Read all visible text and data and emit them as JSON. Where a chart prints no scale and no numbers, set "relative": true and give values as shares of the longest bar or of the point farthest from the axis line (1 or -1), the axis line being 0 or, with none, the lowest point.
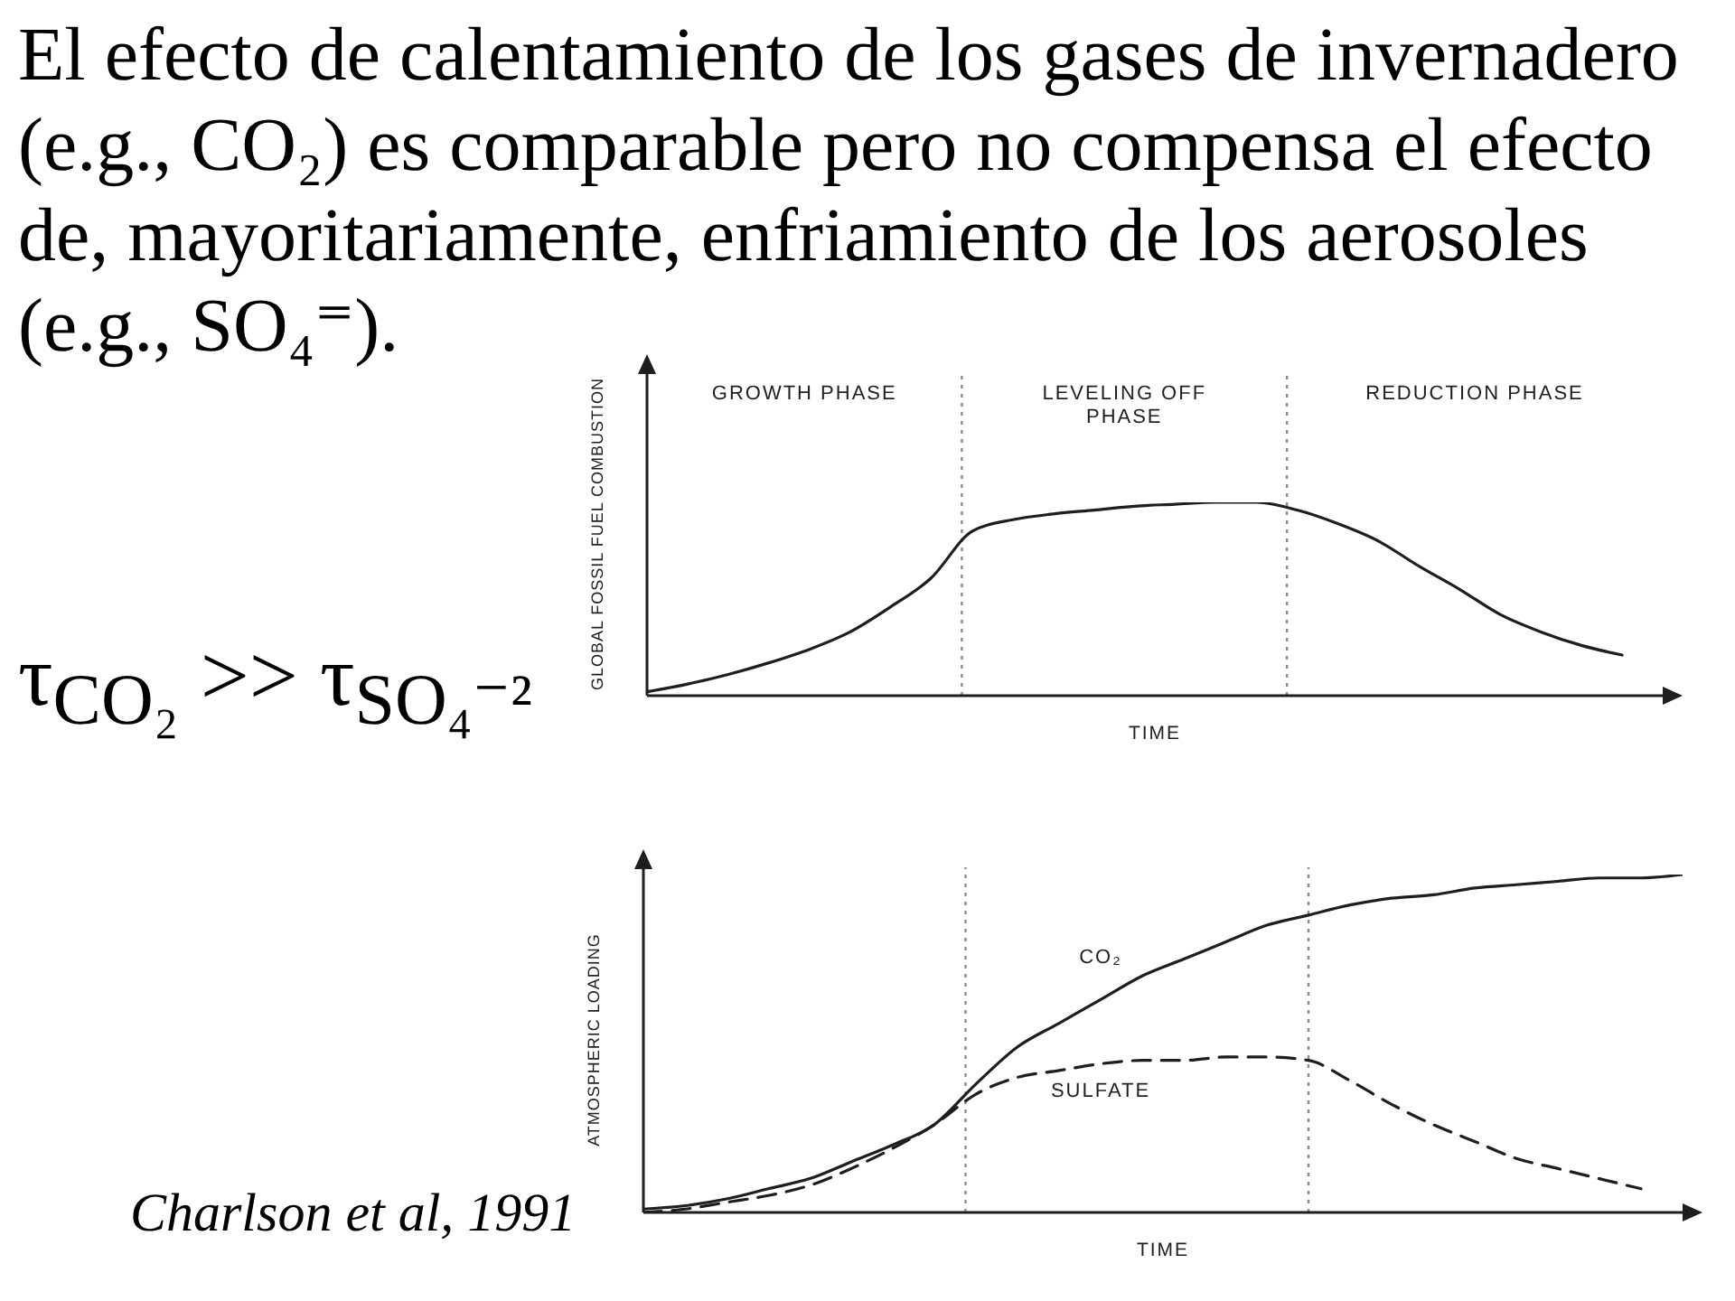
{
  "chart_data": [
    {
      "type": "line",
      "title": "El efecto de calentamiento de los gases de invernadero (e.g., CO₂) es comparable pero no compensa el efecto de, mayoritariamente, enfriamiento de los aerosoles (e.g., SO₄⁼).",
      "xlabel": "TIME",
      "ylabel": "GLOBAL FOSSIL FUEL COMBUSTION",
      "relative": true,
      "categories": [
        null,
        null,
        null,
        null,
        null,
        null,
        null,
        null,
        null,
        null,
        null,
        null,
        null,
        null,
        null,
        null,
        null,
        null,
        null,
        null,
        null,
        null,
        null,
        null,
        null,
        null
      ],
      "series": [
        {
          "color": "#1e1e1e",
          "line_style": "solid",
          "values": [
            0.02,
            0.06,
            0.11,
            0.17,
            0.24,
            0.33,
            0.46,
            0.61,
            0.85,
            0.91,
            0.94,
            0.96,
            0.98,
            0.99,
            1,
            1,
            0.96,
            0.89,
            0.8,
            0.67,
            0.55,
            0.42,
            0.33,
            0.26,
            0.21,
            null
          ]
        }
      ],
      "annotations": [
        "GROWTH PHASE",
        "LEVELING OFF PHASE",
        "REDUCTION PHASE",
        "τ$_{CO₂}$ >> τ$_{SO₄⁻²}$"
      ]
    },
    {
      "type": "line",
      "xlabel": "TIME",
      "ylabel": "ATMOSPHERIC LOADING",
      "relative": true,
      "categories": [
        null,
        null,
        null,
        null,
        null,
        null,
        null,
        null,
        null,
        null,
        null,
        null,
        null,
        null,
        null,
        null,
        null,
        null,
        null,
        null,
        null,
        null,
        null,
        null,
        null,
        null
      ],
      "series": [
        {
          "name": "CO₂",
          "color": "#1e1e1e",
          "line_style": "solid",
          "values": [
            0.01,
            0.02,
            0.04,
            0.07,
            0.1,
            0.15,
            0.2,
            0.26,
            0.38,
            0.49,
            0.56,
            0.63,
            0.7,
            0.75,
            0.8,
            0.85,
            0.88,
            0.91,
            0.93,
            0.94,
            0.96,
            0.97,
            0.98,
            0.99,
            0.99,
            1
          ]
        },
        {
          "name": "SULFATE",
          "color": "#1e1e1e",
          "line_style": "dashed",
          "values": [
            0,
            0.01,
            0.03,
            0.05,
            0.08,
            0.13,
            0.19,
            0.26,
            0.35,
            0.4,
            0.42,
            0.44,
            0.45,
            0.45,
            0.46,
            0.46,
            0.45,
            0.39,
            0.32,
            0.26,
            0.21,
            0.16,
            0.13,
            0.1,
            0.07,
            null
          ]
        }
      ],
      "annotations": [
        "Charlson et al, 1991"
      ]
    }
  ]
}
